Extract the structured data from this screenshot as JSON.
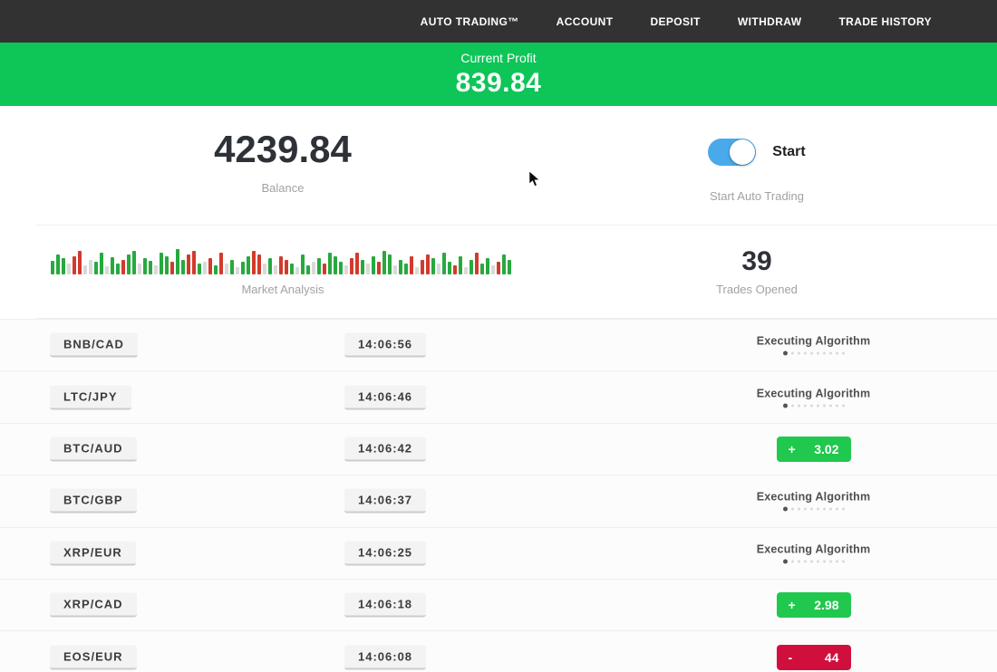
{
  "nav": {
    "items": [
      "AUTO TRADING™",
      "ACCOUNT",
      "DEPOSIT",
      "WITHDRAW",
      "TRADE HISTORY"
    ]
  },
  "profit_banner": {
    "label": "Current Profit",
    "value": "839.84"
  },
  "stats": {
    "balance": {
      "value": "4239.84",
      "label": "Balance"
    },
    "auto_trading": {
      "toggle_label": "Start",
      "label": "Start Auto Trading",
      "toggle_on": true
    },
    "market_analysis": {
      "label": "Market Analysis"
    },
    "trades_opened": {
      "value": "39",
      "label": "Trades Opened"
    }
  },
  "chart_data": {
    "type": "bar",
    "title": "Market Analysis",
    "description": "decorative candlestick-style strip, green/red/gray mini bars, bottom-aligned, heights in px of 30px-tall strip",
    "bars": [
      "g15",
      "g22",
      "g18",
      "x12",
      "r20",
      "r26",
      "x10",
      "x16",
      "g14",
      "g24",
      "x9",
      "g19",
      "g12",
      "r16",
      "g22",
      "g26",
      "x12",
      "g18",
      "g15",
      "x10",
      "g24",
      "g20",
      "r14",
      "g28",
      "g16",
      "r22",
      "r26",
      "g12",
      "x14",
      "r18",
      "g10",
      "r24",
      "x12",
      "g16",
      "x8",
      "g14",
      "g20",
      "r26",
      "r22",
      "x12",
      "g18",
      "x10",
      "r20",
      "r16",
      "g12",
      "x8",
      "g22",
      "g10",
      "x14",
      "g18",
      "r12",
      "g24",
      "g20",
      "g14",
      "x10",
      "r18",
      "r24",
      "g16",
      "x12",
      "g20",
      "r14",
      "g26",
      "g22",
      "x10",
      "g16",
      "g12",
      "r20",
      "x8",
      "r16",
      "r22",
      "g18",
      "x12",
      "g24",
      "g14",
      "r10",
      "g20",
      "x8",
      "g16",
      "r24",
      "g12",
      "g18",
      "x10",
      "r14",
      "g22",
      "g16"
    ]
  },
  "statuses": {
    "executing_label": "Executing Algorithm",
    "dots_total": 10
  },
  "trades": [
    {
      "pair": "BNB/CAD",
      "time": "14:06:56",
      "status": "executing"
    },
    {
      "pair": "LTC/JPY",
      "time": "14:06:46",
      "status": "executing"
    },
    {
      "pair": "BTC/AUD",
      "time": "14:06:42",
      "status": "profit",
      "sign": "+",
      "amount": "3.02"
    },
    {
      "pair": "BTC/GBP",
      "time": "14:06:37",
      "status": "executing"
    },
    {
      "pair": "XRP/EUR",
      "time": "14:06:25",
      "status": "executing"
    },
    {
      "pair": "XRP/CAD",
      "time": "14:06:18",
      "status": "profit",
      "sign": "+",
      "amount": "2.98"
    },
    {
      "pair": "EOS/EUR",
      "time": "14:06:08",
      "status": "loss",
      "sign": "-",
      "amount": "44"
    }
  ],
  "colors": {
    "nav_bg": "#323232",
    "banner_green": "#0ec558",
    "badge_green": "#21c84e",
    "badge_red": "#d10f3d",
    "toggle_blue": "#4aa9ea",
    "bar_green": "#27a93e",
    "bar_red": "#d33a2c",
    "bar_gray": "#d9d9d9"
  }
}
